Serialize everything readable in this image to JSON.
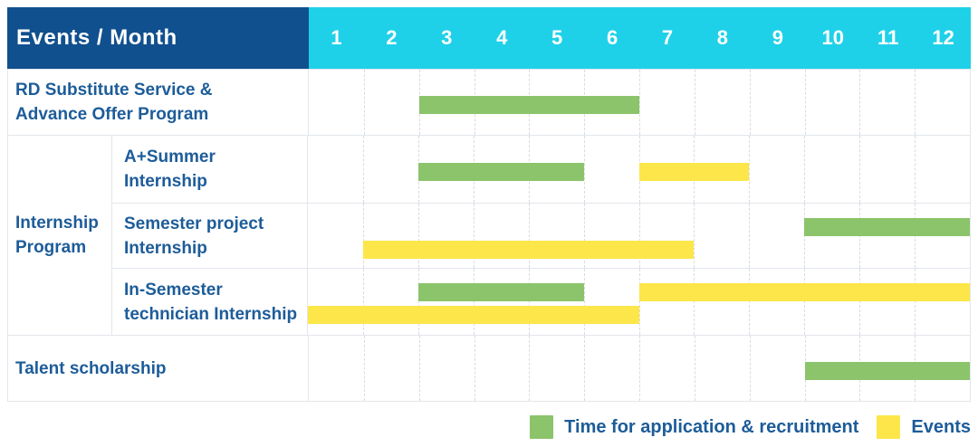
{
  "header": {
    "corner_label": "Events / Month",
    "months": [
      "1",
      "2",
      "3",
      "4",
      "5",
      "6",
      "7",
      "8",
      "9",
      "10",
      "11",
      "12"
    ]
  },
  "group": {
    "label": "Internship Program",
    "lines": [
      "Internship",
      "Program"
    ]
  },
  "colors": {
    "navy": "#11508e",
    "cyan": "#1fd1e8",
    "green": "#8bc46a",
    "yellow": "#fde649",
    "text_blue": "#1d5c99"
  },
  "chart_data": {
    "type": "gantt",
    "x_unit": "month",
    "x_range": [
      1,
      12
    ],
    "legend_position": "bottom-right",
    "rows": [
      {
        "label": "RD Substitute Service & Advance Offer Program",
        "lines": [
          "RD Substitute Service &",
          "Advance Offer Program"
        ],
        "group": null,
        "bars": [
          {
            "kind": "application",
            "start": 3,
            "end": 6,
            "lane": "center"
          }
        ]
      },
      {
        "label": "A+Summer Internship",
        "lines": [
          "A+Summer",
          "Internship"
        ],
        "group": "Internship Program",
        "bars": [
          {
            "kind": "application",
            "start": 3,
            "end": 5,
            "lane": "center"
          },
          {
            "kind": "event",
            "start": 7,
            "end": 8,
            "lane": "center"
          }
        ]
      },
      {
        "label": "Semester project Internship",
        "lines": [
          "Semester project",
          "Internship"
        ],
        "group": "Internship Program",
        "bars": [
          {
            "kind": "application",
            "start": 10,
            "end": 12,
            "lane": "top"
          },
          {
            "kind": "event",
            "start": 2,
            "end": 7,
            "lane": "bottom"
          }
        ]
      },
      {
        "label": "In-Semester technician Internship",
        "lines": [
          "In-Semester",
          "technician Internship"
        ],
        "group": "Internship Program",
        "bars": [
          {
            "kind": "application",
            "start": 3,
            "end": 5,
            "lane": "top"
          },
          {
            "kind": "event",
            "start": 7,
            "end": 12,
            "lane": "top"
          },
          {
            "kind": "event",
            "start": 1,
            "end": 6,
            "lane": "bottom"
          }
        ]
      },
      {
        "label": "Talent scholarship",
        "lines": [
          "Talent scholarship"
        ],
        "group": null,
        "bars": [
          {
            "kind": "application",
            "start": 10,
            "end": 12,
            "lane": "center"
          }
        ]
      }
    ]
  },
  "legend": {
    "items": [
      {
        "kind": "application",
        "label": "Time for application & recruitment"
      },
      {
        "kind": "event",
        "label": "Events"
      }
    ]
  }
}
